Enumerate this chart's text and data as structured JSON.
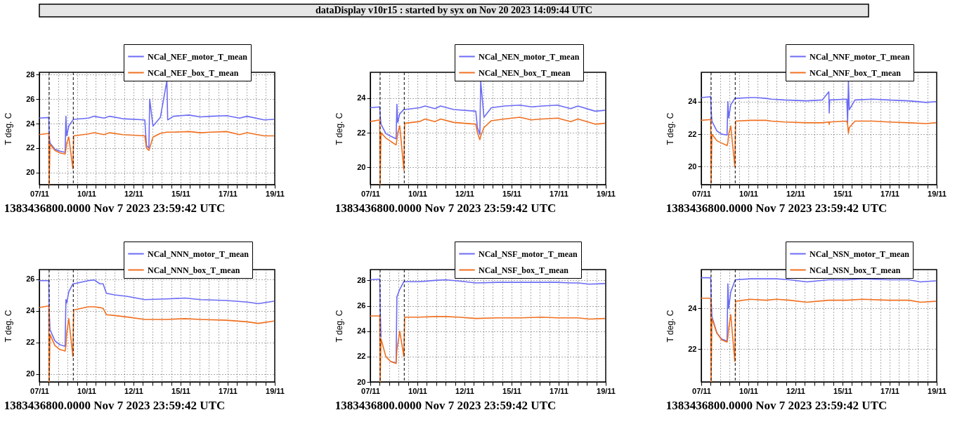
{
  "chart_data": [
    {
      "type": "other",
      "title": "dataDisplay v10r15 : started by syx on Nov 20 2023 14:09:44 UTC"
    },
    {
      "type": "line",
      "ylabel": "T deg. C",
      "annotations": [
        "1383436800.0000 Nov 7 2023 23:59:42 UTC"
      ],
      "legend": "top right",
      "grid": true,
      "xlim": [
        "2023-11-07T23:59",
        "2023-11-19T23:59"
      ],
      "xticks": [
        {
          "value": "2023-11-07T23:59",
          "label": "07/11"
        },
        {
          "value": "2023-11-08T11:30",
          "label": null
        },
        {
          "value": "2023-11-08T23:02",
          "label": null
        },
        {
          "value": "2023-11-09T10:33",
          "label": null
        },
        {
          "value": "2023-11-09T22:04",
          "label": null
        },
        {
          "value": "2023-11-10T09:35",
          "label": "10/11"
        },
        {
          "value": "2023-11-10T21:06",
          "label": null
        },
        {
          "value": "2023-11-11T08:37",
          "label": null
        },
        {
          "value": "2023-11-11T20:08",
          "label": null
        },
        {
          "value": "2023-11-12T07:40",
          "label": null
        },
        {
          "value": "2023-11-12T19:11",
          "label": "12/11"
        },
        {
          "value": "2023-11-13T06:42",
          "label": null
        },
        {
          "value": "2023-11-13T18:13",
          "label": null
        },
        {
          "value": "2023-11-14T05:44",
          "label": null
        },
        {
          "value": "2023-11-14T17:16",
          "label": null
        },
        {
          "value": "2023-11-15T04:47",
          "label": "15/11"
        },
        {
          "value": "2023-11-15T16:18",
          "label": null
        },
        {
          "value": "2023-11-16T03:49",
          "label": null
        },
        {
          "value": "2023-11-16T15:20",
          "label": null
        },
        {
          "value": "2023-11-17T02:52",
          "label": null
        },
        {
          "value": "2023-11-17T14:23",
          "label": "17/11"
        },
        {
          "value": "2023-11-18T01:54",
          "label": null
        },
        {
          "value": "2023-11-18T13:25",
          "label": null
        },
        {
          "value": "2023-11-19T00:56",
          "label": null
        },
        {
          "value": "2023-11-19T12:28",
          "label": null
        },
        {
          "value": "2023-11-19T23:59",
          "label": "19/11"
        }
      ],
      "ylim": [
        19,
        28.2
      ],
      "yticks": [
        20,
        22,
        24,
        26,
        28
      ],
      "ref_lines": [
        {
          "axis": "x",
          "value": "2023-11-08T12:00",
          "label": null,
          "color": "#000000",
          "line_style": "dashed"
        },
        {
          "axis": "x",
          "value": "2023-11-09T17:30",
          "label": null,
          "color": "#000000",
          "line_style": "dashed"
        }
      ],
      "x": [
        "2023-11-08T00:00",
        "2023-11-08T11:30",
        "2023-11-08T12:00",
        "2023-11-08T13:00",
        "2023-11-08T19:00",
        "2023-11-09T01:00",
        "2023-11-09T07:30",
        "2023-11-09T08:30",
        "2023-11-09T09:30",
        "2023-11-09T12:00",
        "2023-11-09T17:00",
        "2023-11-09T18:00",
        "2023-11-10T12:00",
        "2023-11-10T19:00",
        "2023-11-11T07:00",
        "2023-11-11T14:00",
        "2023-11-12T06:00",
        "2023-11-13T09:00",
        "2023-11-13T11:00",
        "2023-11-13T14:00",
        "2023-11-13T15:00",
        "2023-11-13T19:00",
        "2023-11-14T04:00",
        "2023-11-14T12:00",
        "2023-11-14T13:00",
        "2023-11-14T20:00",
        "2023-11-15T15:00",
        "2023-11-16T05:00",
        "2023-11-16T18:00",
        "2023-11-17T13:00",
        "2023-11-18T05:00",
        "2023-11-18T14:00",
        "2023-11-19T11:00",
        "2023-11-19T23:00"
      ],
      "series": [
        {
          "name": "NCal_NEF_motor_T_mean",
          "color": "#6b6bf5",
          "values": [
            24.45,
            24.5,
            23.0,
            22.4,
            21.9,
            21.75,
            21.65,
            24.6,
            23.0,
            23.8,
            24.3,
            24.35,
            24.45,
            24.6,
            24.45,
            24.6,
            24.4,
            24.3,
            22.2,
            22.0,
            26.0,
            23.8,
            24.5,
            27.5,
            24.3,
            24.6,
            24.7,
            24.55,
            24.6,
            24.65,
            24.45,
            24.6,
            24.3,
            24.35
          ]
        },
        {
          "name": "NCal_NEF_box_T_mean",
          "color": "#f07020",
          "values": [
            23.1,
            23.2,
            19.0,
            22.3,
            21.8,
            21.6,
            21.5,
            21.9,
            22.4,
            22.9,
            20.3,
            23.0,
            23.15,
            23.25,
            23.1,
            23.25,
            23.1,
            23.0,
            22.0,
            21.8,
            22.0,
            22.9,
            23.2,
            23.3,
            23.3,
            23.3,
            23.35,
            23.25,
            23.3,
            23.35,
            23.1,
            23.25,
            23.0,
            23.0
          ]
        }
      ]
    },
    {
      "type": "line",
      "ylabel": "T deg. C",
      "annotations": [
        "1383436800.0000 Nov 7 2023 23:59:42 UTC"
      ],
      "legend": "top right",
      "grid": true,
      "xlim": [
        "2023-11-07T23:59",
        "2023-11-19T23:59"
      ],
      "xticks": [
        {
          "value": "2023-11-07T23:59",
          "label": "07/11"
        },
        {
          "value": "2023-11-08T11:30",
          "label": null
        },
        {
          "value": "2023-11-08T23:02",
          "label": null
        },
        {
          "value": "2023-11-09T10:33",
          "label": null
        },
        {
          "value": "2023-11-09T22:04",
          "label": null
        },
        {
          "value": "2023-11-10T09:35",
          "label": "10/11"
        },
        {
          "value": "2023-11-10T21:06",
          "label": null
        },
        {
          "value": "2023-11-11T08:37",
          "label": null
        },
        {
          "value": "2023-11-11T20:08",
          "label": null
        },
        {
          "value": "2023-11-12T07:40",
          "label": null
        },
        {
          "value": "2023-11-12T19:11",
          "label": "12/11"
        },
        {
          "value": "2023-11-13T06:42",
          "label": null
        },
        {
          "value": "2023-11-13T18:13",
          "label": null
        },
        {
          "value": "2023-11-14T05:44",
          "label": null
        },
        {
          "value": "2023-11-14T17:16",
          "label": null
        },
        {
          "value": "2023-11-15T04:47",
          "label": "15/11"
        },
        {
          "value": "2023-11-15T16:18",
          "label": null
        },
        {
          "value": "2023-11-16T03:49",
          "label": null
        },
        {
          "value": "2023-11-16T15:20",
          "label": null
        },
        {
          "value": "2023-11-17T02:52",
          "label": null
        },
        {
          "value": "2023-11-17T14:23",
          "label": "17/11"
        },
        {
          "value": "2023-11-18T01:54",
          "label": null
        },
        {
          "value": "2023-11-18T13:25",
          "label": null
        },
        {
          "value": "2023-11-19T00:56",
          "label": null
        },
        {
          "value": "2023-11-19T12:28",
          "label": null
        },
        {
          "value": "2023-11-19T23:59",
          "label": "19/11"
        }
      ],
      "ylim": [
        19,
        25.5
      ],
      "yticks": [
        20,
        22,
        24
      ],
      "ref_lines": [
        {
          "axis": "x",
          "value": "2023-11-08T12:00",
          "label": null,
          "color": "#000000",
          "line_style": "dashed"
        },
        {
          "axis": "x",
          "value": "2023-11-09T17:30",
          "label": null,
          "color": "#000000",
          "line_style": "dashed"
        }
      ],
      "x": [
        "2023-11-08T00:00",
        "2023-11-08T11:30",
        "2023-11-08T12:00",
        "2023-11-08T13:00",
        "2023-11-08T19:00",
        "2023-11-09T01:00",
        "2023-11-09T07:30",
        "2023-11-09T08:30",
        "2023-11-09T09:30",
        "2023-11-09T12:00",
        "2023-11-09T17:00",
        "2023-11-09T18:00",
        "2023-11-10T12:00",
        "2023-11-10T19:00",
        "2023-11-11T07:00",
        "2023-11-11T14:00",
        "2023-11-12T06:00",
        "2023-11-13T09:00",
        "2023-11-13T11:00",
        "2023-11-13T14:00",
        "2023-11-13T15:00",
        "2023-11-13T19:00",
        "2023-11-14T04:00",
        "2023-11-14T20:00",
        "2023-11-15T15:00",
        "2023-11-16T05:00",
        "2023-11-16T18:00",
        "2023-11-17T13:00",
        "2023-11-18T05:00",
        "2023-11-18T14:00",
        "2023-11-19T11:00",
        "2023-11-19T23:00"
      ],
      "series": [
        {
          "name": "NCal_NEN_motor_T_mean",
          "color": "#6b6bf5",
          "values": [
            23.45,
            23.5,
            23.0,
            22.5,
            21.95,
            21.8,
            21.65,
            23.65,
            22.6,
            23.1,
            23.35,
            23.35,
            23.45,
            23.55,
            23.4,
            23.55,
            23.35,
            23.25,
            22.3,
            21.9,
            25.0,
            22.9,
            23.45,
            23.55,
            23.6,
            23.5,
            23.55,
            23.6,
            23.4,
            23.55,
            23.25,
            23.3
          ]
        },
        {
          "name": "NCal_NEN_box_T_mean",
          "color": "#f07020",
          "values": [
            22.65,
            22.75,
            19.0,
            22.0,
            21.7,
            21.5,
            21.3,
            21.6,
            22.0,
            22.4,
            19.85,
            22.55,
            22.65,
            22.8,
            22.65,
            22.8,
            22.6,
            22.5,
            22.0,
            21.6,
            21.8,
            22.3,
            22.7,
            22.8,
            22.9,
            22.75,
            22.8,
            22.85,
            22.65,
            22.8,
            22.5,
            22.55
          ]
        }
      ]
    },
    {
      "type": "line",
      "ylabel": "T deg. C",
      "annotations": [
        "1383436800.0000 Nov 7 2023 23:59:42 UTC"
      ],
      "legend": "top right",
      "grid": true,
      "xlim": [
        "2023-11-07T23:59",
        "2023-11-19T23:59"
      ],
      "xticks": [
        {
          "value": "2023-11-07T23:59",
          "label": "07/11"
        },
        {
          "value": "2023-11-08T11:30",
          "label": null
        },
        {
          "value": "2023-11-08T23:02",
          "label": null
        },
        {
          "value": "2023-11-09T10:33",
          "label": null
        },
        {
          "value": "2023-11-09T22:04",
          "label": null
        },
        {
          "value": "2023-11-10T09:35",
          "label": "10/11"
        },
        {
          "value": "2023-11-10T21:06",
          "label": null
        },
        {
          "value": "2023-11-11T08:37",
          "label": null
        },
        {
          "value": "2023-11-11T20:08",
          "label": null
        },
        {
          "value": "2023-11-12T07:40",
          "label": null
        },
        {
          "value": "2023-11-12T19:11",
          "label": "12/11"
        },
        {
          "value": "2023-11-13T06:42",
          "label": null
        },
        {
          "value": "2023-11-13T18:13",
          "label": null
        },
        {
          "value": "2023-11-14T05:44",
          "label": null
        },
        {
          "value": "2023-11-14T17:16",
          "label": null
        },
        {
          "value": "2023-11-15T04:47",
          "label": "15/11"
        },
        {
          "value": "2023-11-15T16:18",
          "label": null
        },
        {
          "value": "2023-11-16T03:49",
          "label": null
        },
        {
          "value": "2023-11-16T15:20",
          "label": null
        },
        {
          "value": "2023-11-17T02:52",
          "label": null
        },
        {
          "value": "2023-11-17T14:23",
          "label": "17/11"
        },
        {
          "value": "2023-11-18T01:54",
          "label": null
        },
        {
          "value": "2023-11-18T13:25",
          "label": null
        },
        {
          "value": "2023-11-19T00:56",
          "label": null
        },
        {
          "value": "2023-11-19T12:28",
          "label": null
        },
        {
          "value": "2023-11-19T23:59",
          "label": "19/11"
        }
      ],
      "ylim": [
        18.9,
        25.8
      ],
      "yticks": [
        20,
        22,
        24
      ],
      "ref_lines": [
        {
          "axis": "x",
          "value": "2023-11-08T12:00",
          "label": null,
          "color": "#000000",
          "line_style": "dashed"
        },
        {
          "axis": "x",
          "value": "2023-11-09T17:30",
          "label": null,
          "color": "#000000",
          "line_style": "dashed"
        }
      ],
      "x": [
        "2023-11-08T00:00",
        "2023-11-08T11:30",
        "2023-11-08T12:00",
        "2023-11-08T13:00",
        "2023-11-08T19:00",
        "2023-11-09T01:00",
        "2023-11-09T07:30",
        "2023-11-09T08:30",
        "2023-11-09T09:30",
        "2023-11-09T12:00",
        "2023-11-09T17:00",
        "2023-11-09T18:00",
        "2023-11-10T12:00",
        "2023-11-10T19:00",
        "2023-11-11T07:00",
        "2023-11-11T14:00",
        "2023-11-12T06:00",
        "2023-11-13T09:00",
        "2023-11-14T04:00",
        "2023-11-14T12:00",
        "2023-11-14T12:30",
        "2023-11-14T13:00",
        "2023-11-15T10:00",
        "2023-11-15T11:00",
        "2023-11-15T12:00",
        "2023-11-15T13:00",
        "2023-11-15T20:00",
        "2023-11-16T18:00",
        "2023-11-17T13:00",
        "2023-11-18T14:00",
        "2023-11-19T11:00",
        "2023-11-19T23:00"
      ],
      "series": [
        {
          "name": "NCal_NNF_motor_T_mean",
          "color": "#6b6bf5",
          "values": [
            24.25,
            24.3,
            23.5,
            22.8,
            22.2,
            22.0,
            21.95,
            24.0,
            23.0,
            23.8,
            24.2,
            24.2,
            24.25,
            24.25,
            24.2,
            24.15,
            24.1,
            24.05,
            24.1,
            24.6,
            23.3,
            24.1,
            24.15,
            22.7,
            25.3,
            23.5,
            24.1,
            24.15,
            24.1,
            24.05,
            23.95,
            24.0
          ]
        },
        {
          "name": "NCal_NNF_box_T_mean",
          "color": "#f07020",
          "values": [
            22.85,
            22.9,
            19.0,
            22.0,
            21.6,
            21.45,
            21.3,
            21.5,
            22.0,
            22.5,
            20.0,
            22.8,
            22.85,
            22.85,
            22.85,
            22.8,
            22.75,
            22.7,
            22.7,
            22.75,
            22.6,
            22.75,
            22.8,
            22.6,
            22.05,
            22.4,
            22.8,
            22.8,
            22.75,
            22.7,
            22.65,
            22.7
          ]
        }
      ]
    },
    {
      "type": "line",
      "ylabel": "T deg. C",
      "annotations": [
        "1383436800.0000 Nov 7 2023 23:59:42 UTC"
      ],
      "legend": "top right",
      "grid": true,
      "xlim": [
        "2023-11-07T23:59",
        "2023-11-19T23:59"
      ],
      "xticks": [
        {
          "value": "2023-11-07T23:59",
          "label": "07/11"
        },
        {
          "value": "2023-11-08T11:30",
          "label": null
        },
        {
          "value": "2023-11-08T23:02",
          "label": null
        },
        {
          "value": "2023-11-09T10:33",
          "label": null
        },
        {
          "value": "2023-11-09T22:04",
          "label": null
        },
        {
          "value": "2023-11-10T09:35",
          "label": "10/11"
        },
        {
          "value": "2023-11-10T21:06",
          "label": null
        },
        {
          "value": "2023-11-11T08:37",
          "label": null
        },
        {
          "value": "2023-11-11T20:08",
          "label": null
        },
        {
          "value": "2023-11-12T07:40",
          "label": null
        },
        {
          "value": "2023-11-12T19:11",
          "label": "12/11"
        },
        {
          "value": "2023-11-13T06:42",
          "label": null
        },
        {
          "value": "2023-11-13T18:13",
          "label": null
        },
        {
          "value": "2023-11-14T05:44",
          "label": null
        },
        {
          "value": "2023-11-14T17:16",
          "label": null
        },
        {
          "value": "2023-11-15T04:47",
          "label": "15/11"
        },
        {
          "value": "2023-11-15T16:18",
          "label": null
        },
        {
          "value": "2023-11-16T03:49",
          "label": null
        },
        {
          "value": "2023-11-16T15:20",
          "label": null
        },
        {
          "value": "2023-11-17T02:52",
          "label": null
        },
        {
          "value": "2023-11-17T14:23",
          "label": "17/11"
        },
        {
          "value": "2023-11-18T01:54",
          "label": null
        },
        {
          "value": "2023-11-18T13:25",
          "label": null
        },
        {
          "value": "2023-11-19T00:56",
          "label": null
        },
        {
          "value": "2023-11-19T12:28",
          "label": null
        },
        {
          "value": "2023-11-19T23:59",
          "label": "19/11"
        }
      ],
      "ylim": [
        19.5,
        26.6
      ],
      "yticks": [
        20,
        22,
        24,
        26
      ],
      "ref_lines": [
        {
          "axis": "x",
          "value": "2023-11-08T12:00",
          "label": null,
          "color": "#000000",
          "line_style": "dashed"
        },
        {
          "axis": "x",
          "value": "2023-11-09T17:30",
          "label": null,
          "color": "#000000",
          "line_style": "dashed"
        }
      ],
      "x": [
        "2023-11-08T00:00",
        "2023-11-08T11:30",
        "2023-11-08T12:00",
        "2023-11-08T13:00",
        "2023-11-08T19:00",
        "2023-11-09T01:00",
        "2023-11-09T07:30",
        "2023-11-09T08:30",
        "2023-11-09T09:30",
        "2023-11-09T12:00",
        "2023-11-09T17:00",
        "2023-11-09T18:00",
        "2023-11-10T12:00",
        "2023-11-10T19:00",
        "2023-11-11T02:00",
        "2023-11-11T06:00",
        "2023-11-11T10:00",
        "2023-11-11T20:00",
        "2023-11-12T12:00",
        "2023-11-13T09:00",
        "2023-11-14T12:00",
        "2023-11-15T10:00",
        "2023-11-16T05:00",
        "2023-11-17T13:00",
        "2023-11-18T14:00",
        "2023-11-19T04:00",
        "2023-11-19T23:00"
      ],
      "series": [
        {
          "name": "NCal_NNN_motor_T_mean",
          "color": "#6b6bf5",
          "values": [
            25.9,
            25.9,
            24.0,
            22.8,
            22.1,
            21.85,
            21.75,
            24.7,
            24.5,
            25.2,
            25.7,
            25.7,
            25.9,
            25.95,
            25.7,
            25.7,
            25.1,
            25.0,
            24.9,
            24.7,
            24.75,
            24.8,
            24.7,
            24.65,
            24.55,
            24.45,
            24.6
          ]
        },
        {
          "name": "NCal_NNN_box_T_mean",
          "color": "#f07020",
          "values": [
            24.2,
            24.3,
            19.5,
            22.5,
            21.8,
            21.55,
            21.45,
            21.8,
            22.6,
            23.5,
            21.1,
            24.05,
            24.25,
            24.25,
            24.2,
            24.15,
            23.75,
            23.7,
            23.6,
            23.45,
            23.45,
            23.5,
            23.45,
            23.4,
            23.3,
            23.2,
            23.35
          ]
        }
      ]
    },
    {
      "type": "line",
      "ylabel": "T deg. C",
      "annotations": [
        "1383436800.0000 Nov 7 2023 23:59:42 UTC"
      ],
      "legend": "top right",
      "grid": true,
      "xlim": [
        "2023-11-07T23:59",
        "2023-11-19T23:59"
      ],
      "xticks": [
        {
          "value": "2023-11-07T23:59",
          "label": "07/11"
        },
        {
          "value": "2023-11-08T11:30",
          "label": null
        },
        {
          "value": "2023-11-08T23:02",
          "label": null
        },
        {
          "value": "2023-11-09T10:33",
          "label": null
        },
        {
          "value": "2023-11-09T22:04",
          "label": null
        },
        {
          "value": "2023-11-10T09:35",
          "label": "10/11"
        },
        {
          "value": "2023-11-10T21:06",
          "label": null
        },
        {
          "value": "2023-11-11T08:37",
          "label": null
        },
        {
          "value": "2023-11-11T20:08",
          "label": null
        },
        {
          "value": "2023-11-12T07:40",
          "label": null
        },
        {
          "value": "2023-11-12T19:11",
          "label": "12/11"
        },
        {
          "value": "2023-11-13T06:42",
          "label": null
        },
        {
          "value": "2023-11-13T18:13",
          "label": null
        },
        {
          "value": "2023-11-14T05:44",
          "label": null
        },
        {
          "value": "2023-11-14T17:16",
          "label": null
        },
        {
          "value": "2023-11-15T04:47",
          "label": "15/11"
        },
        {
          "value": "2023-11-15T16:18",
          "label": null
        },
        {
          "value": "2023-11-16T03:49",
          "label": null
        },
        {
          "value": "2023-11-16T15:20",
          "label": null
        },
        {
          "value": "2023-11-17T02:52",
          "label": null
        },
        {
          "value": "2023-11-17T14:23",
          "label": "17/11"
        },
        {
          "value": "2023-11-18T01:54",
          "label": null
        },
        {
          "value": "2023-11-18T13:25",
          "label": null
        },
        {
          "value": "2023-11-19T00:56",
          "label": null
        },
        {
          "value": "2023-11-19T12:28",
          "label": null
        },
        {
          "value": "2023-11-19T23:59",
          "label": "19/11"
        }
      ],
      "ylim": [
        20,
        28.85
      ],
      "yticks": [
        20,
        22,
        24,
        26,
        28
      ],
      "ref_lines": [
        {
          "axis": "x",
          "value": "2023-11-08T12:00",
          "label": null,
          "color": "#000000",
          "line_style": "dashed"
        },
        {
          "axis": "x",
          "value": "2023-11-09T17:30",
          "label": null,
          "color": "#000000",
          "line_style": "dashed"
        }
      ],
      "x": [
        "2023-11-08T00:00",
        "2023-11-08T11:30",
        "2023-11-08T12:00",
        "2023-11-08T13:00",
        "2023-11-08T19:00",
        "2023-11-09T01:00",
        "2023-11-09T07:30",
        "2023-11-09T08:30",
        "2023-11-09T12:00",
        "2023-11-09T17:00",
        "2023-11-09T18:00",
        "2023-11-10T12:00",
        "2023-11-11T07:00",
        "2023-11-11T20:00",
        "2023-11-12T12:00",
        "2023-11-13T09:00",
        "2023-11-14T12:00",
        "2023-11-15T15:00",
        "2023-11-16T18:00",
        "2023-11-17T13:00",
        "2023-11-18T05:00",
        "2023-11-18T14:00",
        "2023-11-19T04:00",
        "2023-11-19T23:00"
      ],
      "series": [
        {
          "name": "NCal_NSF_motor_T_mean",
          "color": "#6b6bf5",
          "values": [
            28.05,
            28.1,
            26.0,
            23.5,
            null,
            21.6,
            21.5,
            26.7,
            27.3,
            27.9,
            27.9,
            27.9,
            28.0,
            28.05,
            27.95,
            27.8,
            27.85,
            27.85,
            27.85,
            27.85,
            27.8,
            27.8,
            27.7,
            27.75
          ]
        },
        {
          "name": "NCal_NSF_box_T_mean",
          "color": "#f07020",
          "values": [
            25.2,
            25.2,
            20.0,
            23.4,
            22.0,
            21.6,
            21.45,
            22.5,
            24.0,
            22.0,
            25.1,
            25.1,
            25.15,
            25.15,
            25.1,
            25.0,
            25.05,
            25.05,
            25.1,
            25.05,
            25.05,
            25.05,
            24.95,
            25.0
          ]
        }
      ]
    },
    {
      "type": "line",
      "ylabel": "T deg. C",
      "annotations": [
        "1383436800.0000 Nov 7 2023 23:59:42 UTC"
      ],
      "legend": "top right",
      "grid": true,
      "xlim": [
        "2023-11-07T23:59",
        "2023-11-19T23:59"
      ],
      "xticks": [
        {
          "value": "2023-11-07T23:59",
          "label": "07/11"
        },
        {
          "value": "2023-11-08T11:30",
          "label": null
        },
        {
          "value": "2023-11-08T23:02",
          "label": null
        },
        {
          "value": "2023-11-09T10:33",
          "label": null
        },
        {
          "value": "2023-11-09T22:04",
          "label": null
        },
        {
          "value": "2023-11-10T09:35",
          "label": "10/11"
        },
        {
          "value": "2023-11-10T21:06",
          "label": null
        },
        {
          "value": "2023-11-11T08:37",
          "label": null
        },
        {
          "value": "2023-11-11T20:08",
          "label": null
        },
        {
          "value": "2023-11-12T07:40",
          "label": null
        },
        {
          "value": "2023-11-12T19:11",
          "label": "12/11"
        },
        {
          "value": "2023-11-13T06:42",
          "label": null
        },
        {
          "value": "2023-11-13T18:13",
          "label": null
        },
        {
          "value": "2023-11-14T05:44",
          "label": null
        },
        {
          "value": "2023-11-14T17:16",
          "label": null
        },
        {
          "value": "2023-11-15T04:47",
          "label": "15/11"
        },
        {
          "value": "2023-11-15T16:18",
          "label": null
        },
        {
          "value": "2023-11-16T03:49",
          "label": null
        },
        {
          "value": "2023-11-16T15:20",
          "label": null
        },
        {
          "value": "2023-11-17T02:52",
          "label": null
        },
        {
          "value": "2023-11-17T14:23",
          "label": "17/11"
        },
        {
          "value": "2023-11-18T01:54",
          "label": null
        },
        {
          "value": "2023-11-18T13:25",
          "label": null
        },
        {
          "value": "2023-11-19T00:56",
          "label": null
        },
        {
          "value": "2023-11-19T12:28",
          "label": null
        },
        {
          "value": "2023-11-19T23:59",
          "label": "19/11"
        }
      ],
      "ylim": [
        20.4,
        25.9
      ],
      "yticks": [
        22,
        24
      ],
      "ref_lines": [
        {
          "axis": "x",
          "value": "2023-11-08T12:00",
          "label": null,
          "color": "#000000",
          "line_style": "dashed"
        },
        {
          "axis": "x",
          "value": "2023-11-09T17:30",
          "label": null,
          "color": "#000000",
          "line_style": "dashed"
        }
      ],
      "x": [
        "2023-11-08T00:00",
        "2023-11-08T11:30",
        "2023-11-08T12:00",
        "2023-11-08T13:00",
        "2023-11-08T19:00",
        "2023-11-09T01:00",
        "2023-11-09T07:30",
        "2023-11-09T08:30",
        "2023-11-09T09:30",
        "2023-11-09T12:00",
        "2023-11-09T17:00",
        "2023-11-09T18:00",
        "2023-11-10T12:00",
        "2023-11-11T07:00",
        "2023-11-11T20:00",
        "2023-11-12T12:00",
        "2023-11-13T09:00",
        "2023-11-14T12:00",
        "2023-11-15T10:00",
        "2023-11-16T05:00",
        "2023-11-17T13:00",
        "2023-11-18T14:00",
        "2023-11-19T04:00",
        "2023-11-19T23:00"
      ],
      "series": [
        {
          "name": "NCal_NSN_motor_T_mean",
          "color": "#6b6bf5",
          "values": [
            25.5,
            25.5,
            24.5,
            23.6,
            22.8,
            22.5,
            22.4,
            25.2,
            24.0,
            24.8,
            25.35,
            25.4,
            25.45,
            25.45,
            25.45,
            25.4,
            25.3,
            25.4,
            25.4,
            25.45,
            25.4,
            25.4,
            25.3,
            25.35
          ]
        },
        {
          "name": "NCal_NSN_box_T_mean",
          "color": "#f07020",
          "values": [
            24.5,
            24.5,
            20.4,
            23.5,
            22.8,
            22.45,
            22.35,
            22.6,
            23.0,
            23.7,
            21.4,
            24.35,
            24.45,
            24.4,
            24.45,
            24.4,
            24.3,
            24.4,
            24.4,
            24.45,
            24.4,
            24.4,
            24.3,
            24.35
          ]
        }
      ]
    }
  ]
}
